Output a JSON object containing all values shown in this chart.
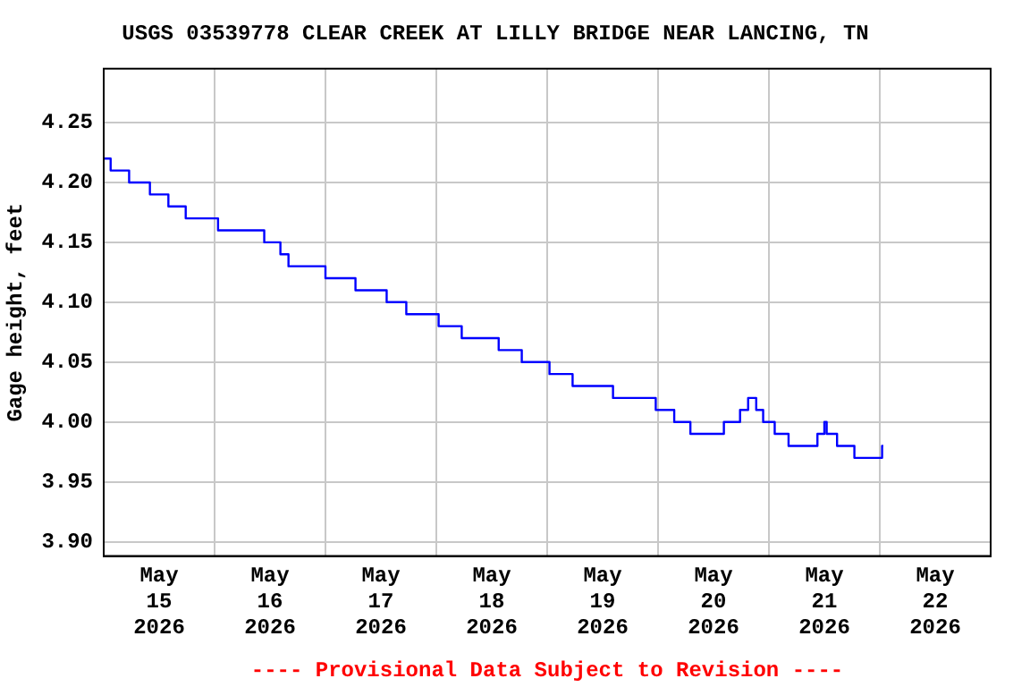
{
  "chart_data": {
    "type": "step",
    "title": "USGS 03539778 CLEAR CREEK AT LILLY BRIDGE NEAR LANCING, TN",
    "ylabel": "Gage height, feet",
    "annotations": [
      "---- Provisional Data Subject to Revision ----"
    ],
    "x": [
      "2026-05-15T00:00",
      "2026-05-15T01:30",
      "2026-05-15T05:30",
      "2026-05-15T10:00",
      "2026-05-15T14:00",
      "2026-05-15T17:45",
      "2026-05-16T00:45",
      "2026-05-16T10:45",
      "2026-05-16T14:15",
      "2026-05-16T16:00",
      "2026-05-17T00:00",
      "2026-05-17T06:30",
      "2026-05-17T13:15",
      "2026-05-17T17:30",
      "2026-05-18T00:30",
      "2026-05-18T05:30",
      "2026-05-18T13:30",
      "2026-05-18T18:30",
      "2026-05-19T00:30",
      "2026-05-19T05:30",
      "2026-05-19T14:15",
      "2026-05-19T23:30",
      "2026-05-20T03:30",
      "2026-05-20T07:00",
      "2026-05-20T14:15",
      "2026-05-20T17:45",
      "2026-05-20T19:30",
      "2026-05-20T21:15",
      "2026-05-20T22:45",
      "2026-05-21T01:15",
      "2026-05-21T04:15",
      "2026-05-21T10:30",
      "2026-05-21T12:00",
      "2026-05-21T12:30",
      "2026-05-21T14:45",
      "2026-05-21T18:30",
      "2026-05-22T00:30",
      "2026-05-22T00:45"
    ],
    "series": [
      {
        "color": "#0000ff",
        "values": [
          4.22,
          4.21,
          4.2,
          4.19,
          4.18,
          4.17,
          4.16,
          4.15,
          4.14,
          4.13,
          4.12,
          4.11,
          4.1,
          4.09,
          4.08,
          4.07,
          4.06,
          4.05,
          4.04,
          4.03,
          4.02,
          4.01,
          4.0,
          3.99,
          4.0,
          4.01,
          4.02,
          4.01,
          4.0,
          3.99,
          3.98,
          3.99,
          4.0,
          3.99,
          3.98,
          3.97,
          3.98,
          3.98
        ]
      }
    ],
    "xlim": [
      "2026-05-15T00:00",
      "2026-05-23T00:00"
    ],
    "xticks": [
      {
        "value": "2026-05-15T12:00",
        "label": "May\n15\n2026"
      },
      {
        "value": "2026-05-16T00:00",
        "label": null
      },
      {
        "value": "2026-05-16T12:00",
        "label": "May\n16\n2026"
      },
      {
        "value": "2026-05-17T00:00",
        "label": null
      },
      {
        "value": "2026-05-17T12:00",
        "label": "May\n17\n2026"
      },
      {
        "value": "2026-05-18T00:00",
        "label": null
      },
      {
        "value": "2026-05-18T12:00",
        "label": "May\n18\n2026"
      },
      {
        "value": "2026-05-19T00:00",
        "label": null
      },
      {
        "value": "2026-05-19T12:00",
        "label": "May\n19\n2026"
      },
      {
        "value": "2026-05-20T00:00",
        "label": null
      },
      {
        "value": "2026-05-20T12:00",
        "label": "May\n20\n2026"
      },
      {
        "value": "2026-05-21T00:00",
        "label": null
      },
      {
        "value": "2026-05-21T12:00",
        "label": "May\n21\n2026"
      },
      {
        "value": "2026-05-22T00:00",
        "label": null
      },
      {
        "value": "2026-05-22T12:00",
        "label": "May\n22\n2026"
      }
    ],
    "ylim": [
      3.888,
      4.295
    ],
    "yticks": [
      {
        "value": 3.9,
        "label": "3.90"
      },
      {
        "value": 3.95,
        "label": "3.95"
      },
      {
        "value": 4.0,
        "label": "4.00"
      },
      {
        "value": 4.05,
        "label": "4.05"
      },
      {
        "value": 4.1,
        "label": "4.10"
      },
      {
        "value": 4.15,
        "label": "4.15"
      },
      {
        "value": 4.2,
        "label": "4.20"
      },
      {
        "value": 4.25,
        "label": "4.25"
      }
    ],
    "grid": true,
    "legend": false,
    "marker": "none",
    "line_style": "solid"
  }
}
